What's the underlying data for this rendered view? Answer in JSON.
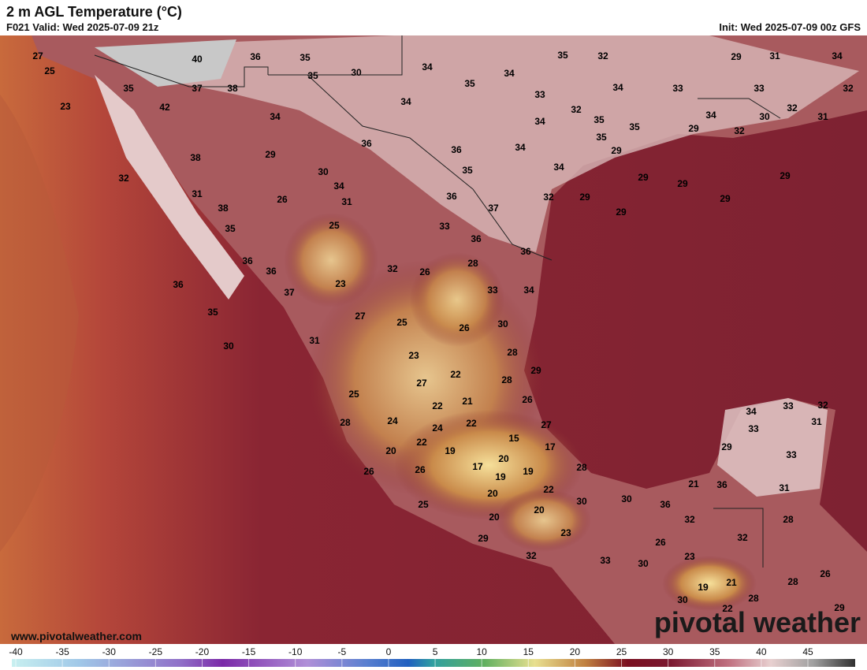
{
  "header": {
    "title": "2 m AGL Temperature (°C)",
    "valid": "F021 Valid: Wed 2025-07-09 21z",
    "init": "Init: Wed 2025-07-09 00z GFS"
  },
  "labels": [
    27,
    25,
    23,
    40,
    36,
    35,
    35,
    37,
    38,
    42,
    35,
    30,
    34,
    35,
    32,
    29,
    31,
    34,
    35,
    34,
    34,
    33,
    33,
    32,
    34,
    33,
    32,
    35,
    34,
    30,
    32,
    31,
    34,
    34,
    35,
    29,
    32,
    36,
    36,
    34,
    35,
    29,
    38,
    29,
    30,
    35,
    34,
    29,
    29,
    29,
    32,
    34,
    31,
    26,
    31,
    36,
    32,
    29,
    29,
    38,
    37,
    29,
    35,
    25,
    33,
    36,
    36,
    36,
    36,
    32,
    26,
    28,
    36,
    23,
    37,
    33,
    34,
    35,
    27,
    25,
    26,
    30,
    30,
    31,
    28,
    23,
    29,
    22,
    27,
    28,
    25,
    21,
    22,
    26,
    34,
    33,
    32,
    28,
    24,
    22,
    24,
    27,
    31,
    33,
    15,
    22,
    20,
    19,
    17,
    29,
    33,
    20,
    17,
    19,
    26,
    26,
    19,
    28,
    21,
    36,
    31,
    22,
    20,
    30,
    30,
    36,
    25,
    20,
    32,
    28,
    20,
    23,
    32,
    29,
    26,
    32,
    23,
    33,
    30,
    26,
    28,
    19,
    21,
    28,
    30,
    22,
    29
  ],
  "watermark": "www.pivotalweather.com",
  "logo": "pivotal weather",
  "colorbar": {
    "ticks": [
      -40,
      -35,
      -30,
      -25,
      -20,
      -15,
      -10,
      -5,
      0,
      5,
      10,
      15,
      20,
      25,
      30,
      35,
      40,
      45
    ]
  }
}
